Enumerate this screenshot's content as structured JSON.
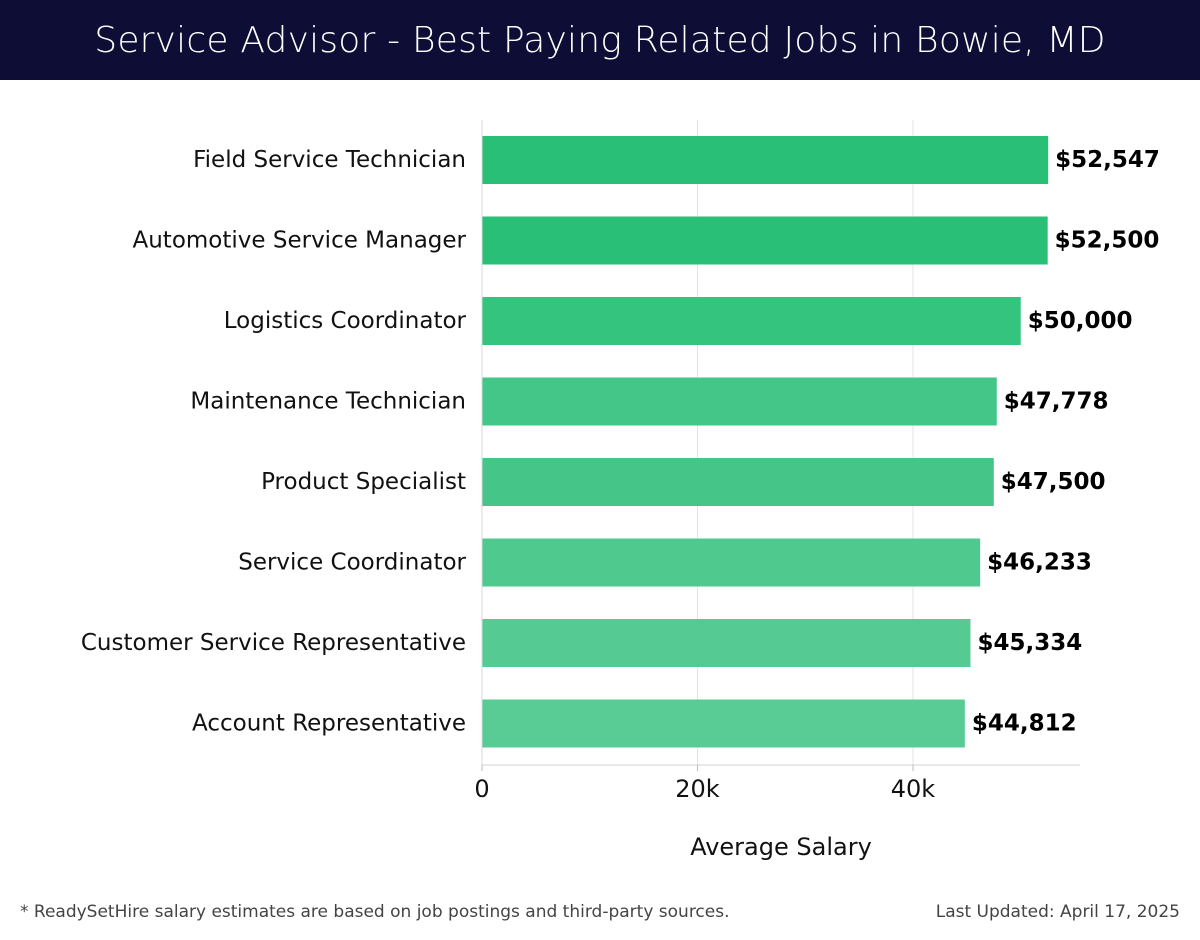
{
  "header": {
    "title": "Service Advisor - Best Paying Related Jobs in Bowie, MD"
  },
  "footer": {
    "note": "* ReadySetHire salary estimates are based on job postings and third-party sources.",
    "last_updated": "Last Updated: April 17, 2025"
  },
  "chart_data": {
    "type": "bar",
    "orientation": "horizontal",
    "title": "Service Advisor - Best Paying Related Jobs in Bowie, MD",
    "xlabel": "Average Salary",
    "ylabel": "",
    "xlim": [
      0,
      55500
    ],
    "xticks": [
      0,
      20000,
      40000
    ],
    "xtick_labels": [
      "0",
      "20k",
      "40k"
    ],
    "grid": true,
    "categories": [
      "Field Service Technician",
      "Automotive Service Manager",
      "Logistics Coordinator",
      "Maintenance Technician",
      "Product Specialist",
      "Service Coordinator",
      "Customer Service Representative",
      "Account Representative"
    ],
    "values": [
      52547,
      52500,
      50000,
      47778,
      47500,
      46233,
      45334,
      44812
    ],
    "value_labels": [
      "$52,547",
      "$52,500",
      "$50,000",
      "$47,778",
      "$47,500",
      "$46,233",
      "$45,334",
      "$44,812"
    ],
    "colors": [
      "#2abf77",
      "#2abf77",
      "#35c47e",
      "#43c687",
      "#45c688",
      "#4fc98e",
      "#55cb93",
      "#58cc94"
    ]
  }
}
